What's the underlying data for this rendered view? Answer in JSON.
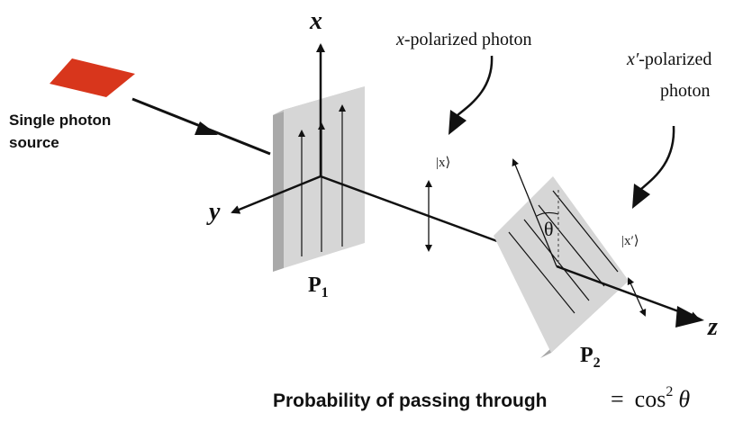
{
  "source": {
    "line1": "Single photon",
    "line2": "source",
    "color": "#d8361c"
  },
  "axes": {
    "x": "x",
    "y": "y",
    "z": "z"
  },
  "polarizers": {
    "p1": {
      "letter": "P",
      "sub": "1"
    },
    "p2": {
      "letter": "P",
      "sub": "2"
    },
    "angle": "θ"
  },
  "annotations": {
    "x_photon_var": "x",
    "x_photon_text": "-polarized  photon",
    "xp_photon_var": "x′",
    "xp_photon_text": "-polarized",
    "xp_photon_line2": "photon",
    "ket_x": "|x⟩",
    "ket_xp": "|x′⟩"
  },
  "formula": {
    "text": "Probability of passing through",
    "equals": "=",
    "fn": "cos",
    "exp": "2",
    "var": "θ"
  },
  "colors": {
    "ink": "#111111",
    "panel_face": "#d6d6d6",
    "panel_edge": "#bdbdbd",
    "panel_side": "#a9a9a9"
  }
}
